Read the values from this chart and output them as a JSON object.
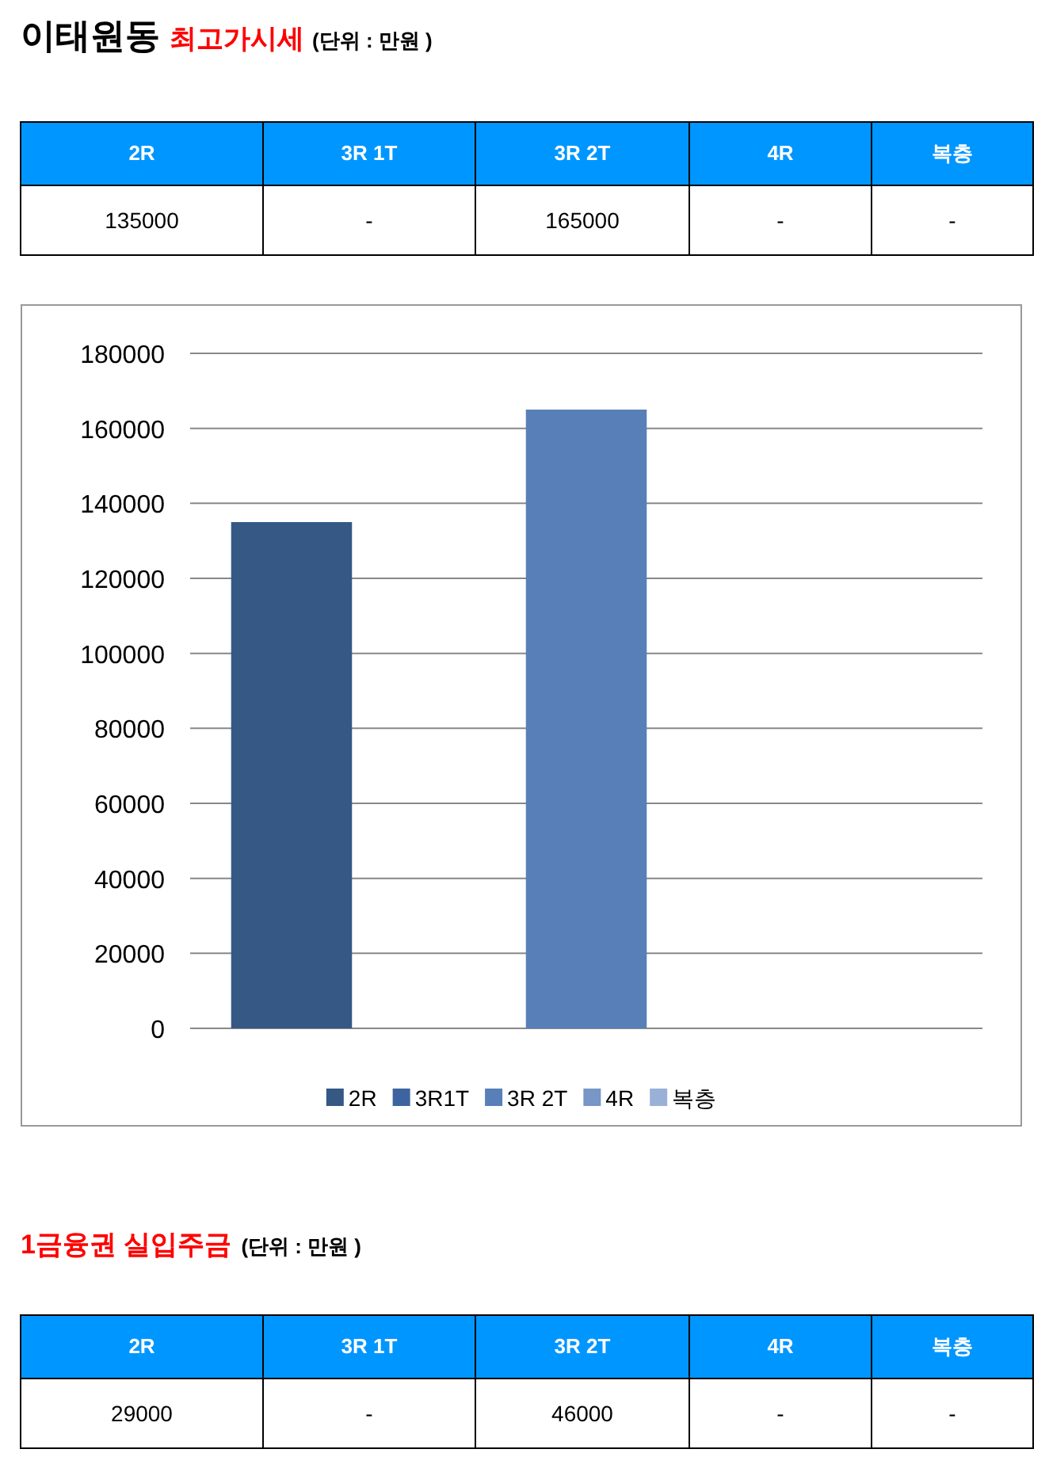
{
  "chart_data": [
    {
      "type": "other",
      "title": "이태원동",
      "subtitle": "최고가시세",
      "annotations": [
        "(단위 : 만원 )"
      ],
      "categories": [
        "2R",
        "3R 1T",
        "3R 2T",
        "4R",
        "복층"
      ],
      "value_labels": [
        "135000",
        "-",
        "165000",
        "-",
        "-"
      ]
    },
    {
      "type": "bar",
      "categories": [
        null
      ],
      "ylim": [
        0,
        180000
      ],
      "yticks": [
        0,
        20000,
        40000,
        60000,
        80000,
        100000,
        120000,
        140000,
        160000,
        180000
      ],
      "grid": "y",
      "legend": "bottom",
      "series": [
        {
          "name": "2R",
          "color": "#355885",
          "values": [
            135000
          ]
        },
        {
          "name": "3R1T",
          "color": "#3e64a0",
          "values": [
            null
          ]
        },
        {
          "name": "3R 2T",
          "color": "#587fb8",
          "values": [
            165000
          ]
        },
        {
          "name": "4R",
          "color": "#7896c6",
          "values": [
            null
          ]
        },
        {
          "name": "복층",
          "color": "#9bb0d6",
          "values": [
            null
          ]
        }
      ]
    },
    {
      "type": "other",
      "title": "1금융권 실입주금",
      "annotations": [
        "(단위 : 만원 )"
      ],
      "categories": [
        "2R",
        "3R 1T",
        "3R 2T",
        "4R",
        "복층"
      ],
      "value_labels": [
        "29000",
        "-",
        "46000",
        "-",
        "-"
      ]
    }
  ]
}
